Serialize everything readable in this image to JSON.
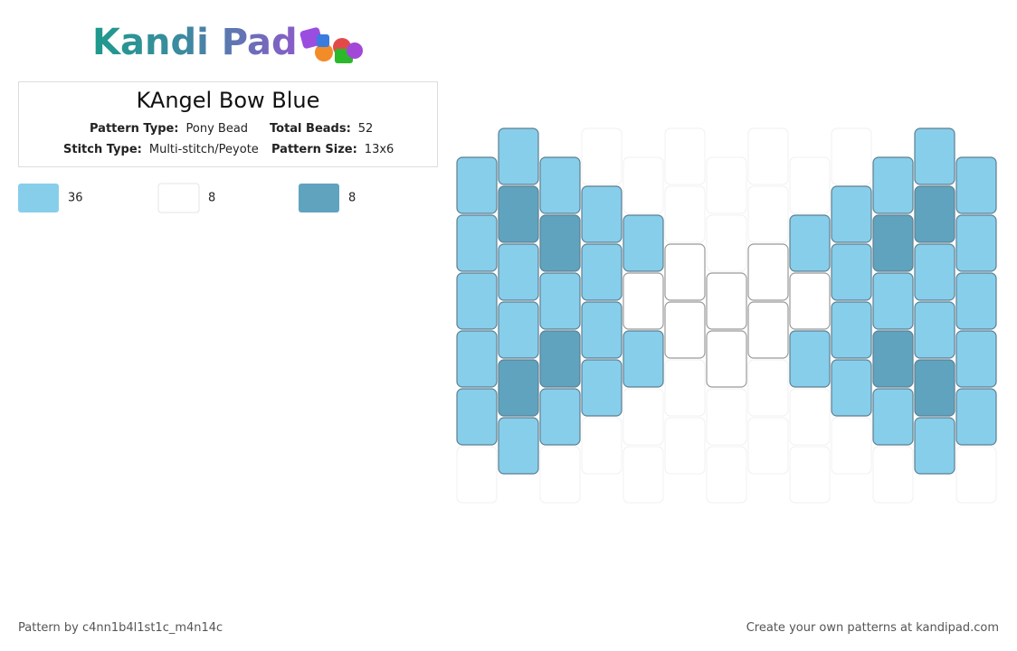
{
  "logo": "Kandi Pad",
  "title": "KAngel Bow Blue",
  "stats": [
    {
      "label": "Pattern Type:",
      "value": "Pony Bead"
    },
    {
      "label": "Total Beads:",
      "value": "52"
    },
    {
      "label": "Stitch Type:",
      "value": "Multi-stitch/Peyote"
    },
    {
      "label": "Pattern Size:",
      "value": "13x6"
    }
  ],
  "legend": [
    {
      "color": "#87CEEB",
      "count": 36
    },
    {
      "color": "#FFFFFF",
      "count": 8
    },
    {
      "color": "#5FA3BF",
      "count": 8
    }
  ],
  "beads": [
    "00000.",
    "020020",
    "02020.",
    ".0000.",
    ".010..",
    "..11..",
    "..11..",
    "..11..",
    ".010..",
    ".0000.",
    "02020.",
    "020020",
    "00000."
  ],
  "footer": {
    "author": "Pattern by c4nn1b4l1st1c_m4n14c",
    "promo": "Create your own patterns at kandipad.com"
  }
}
